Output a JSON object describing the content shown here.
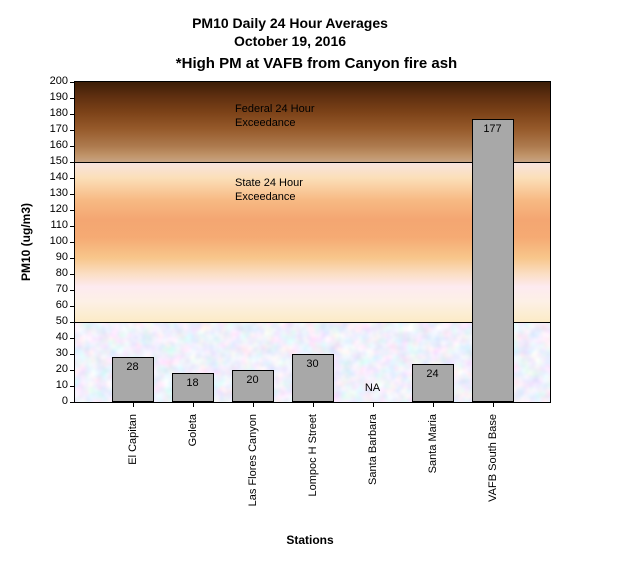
{
  "chart_data": {
    "type": "bar",
    "title": "PM10 Daily 24 Hour Averages",
    "title_line2": "October 19, 2016",
    "subtitle": "*High PM at VAFB from Canyon fire ash",
    "xlabel": "Stations",
    "ylabel": "PM10 (ug/m3)",
    "ylim": [
      0,
      200
    ],
    "ytick_step": 10,
    "grid": "off",
    "legend": "none",
    "categories": [
      "El Capitan",
      "Goleta",
      "Las Flores Canyon",
      "Lompoc H Street",
      "Santa Barbara",
      "Santa Maria",
      "VAFB South Base"
    ],
    "values": [
      28,
      18,
      20,
      30,
      null,
      24,
      177
    ],
    "value_labels": [
      "28",
      "18",
      "20",
      "30",
      "NA",
      "24",
      "177"
    ],
    "zones": [
      {
        "name": "federal-exceedance",
        "label_line1": "Federal 24 Hour",
        "label_line2": "Exceedance",
        "range": [
          150,
          200
        ]
      },
      {
        "name": "state-exceedance",
        "label_line1": "State 24 Hour",
        "label_line2": "Exceedance",
        "range": [
          50,
          150
        ]
      },
      {
        "name": "below-state",
        "label_line1": "",
        "label_line2": "",
        "range": [
          0,
          50
        ]
      }
    ],
    "threshold_lines": [
      150,
      50
    ]
  },
  "colors": {
    "bar_fill": "#a8a8a8",
    "bar_border": "#000000",
    "federal_zone_top": "#3c1d07",
    "federal_zone_bottom": "#c7a384",
    "state_zone_accent": "#f4a672",
    "state_zone_light": "#fdeaf0",
    "below_state_zone_base": "#c9d9ea",
    "text": "#000000"
  }
}
